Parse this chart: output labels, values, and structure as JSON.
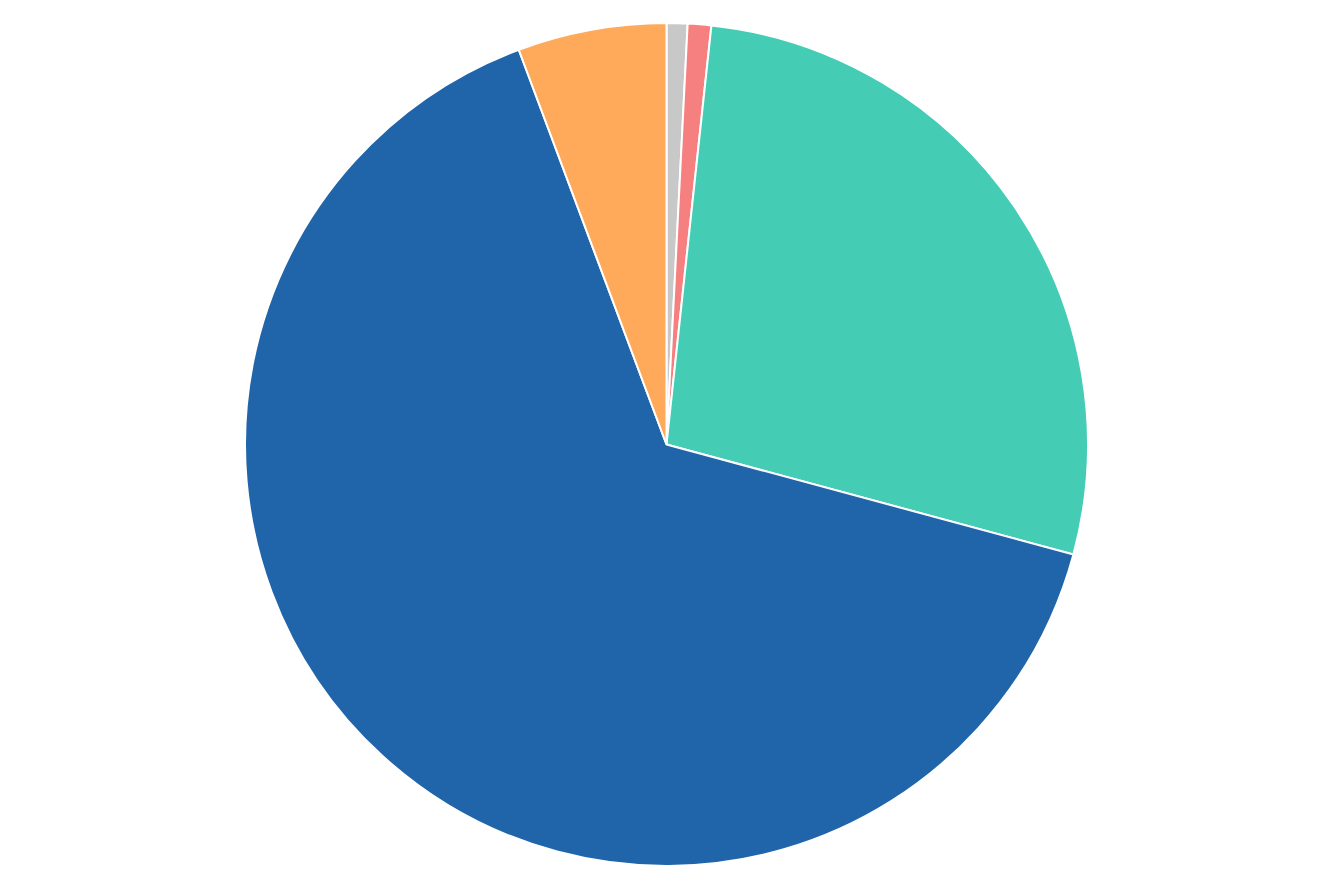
{
  "chart_data": {
    "type": "pie",
    "categories": [
      null,
      null,
      null,
      null,
      null
    ],
    "values": [
      0.8,
      0.9,
      27.5,
      65.1,
      5.7
    ],
    "colors": [
      "#c8c8c8",
      "#f67f7f",
      "#44cdb4",
      "#2065aa",
      "#ffaa5a"
    ],
    "legend": false
  }
}
